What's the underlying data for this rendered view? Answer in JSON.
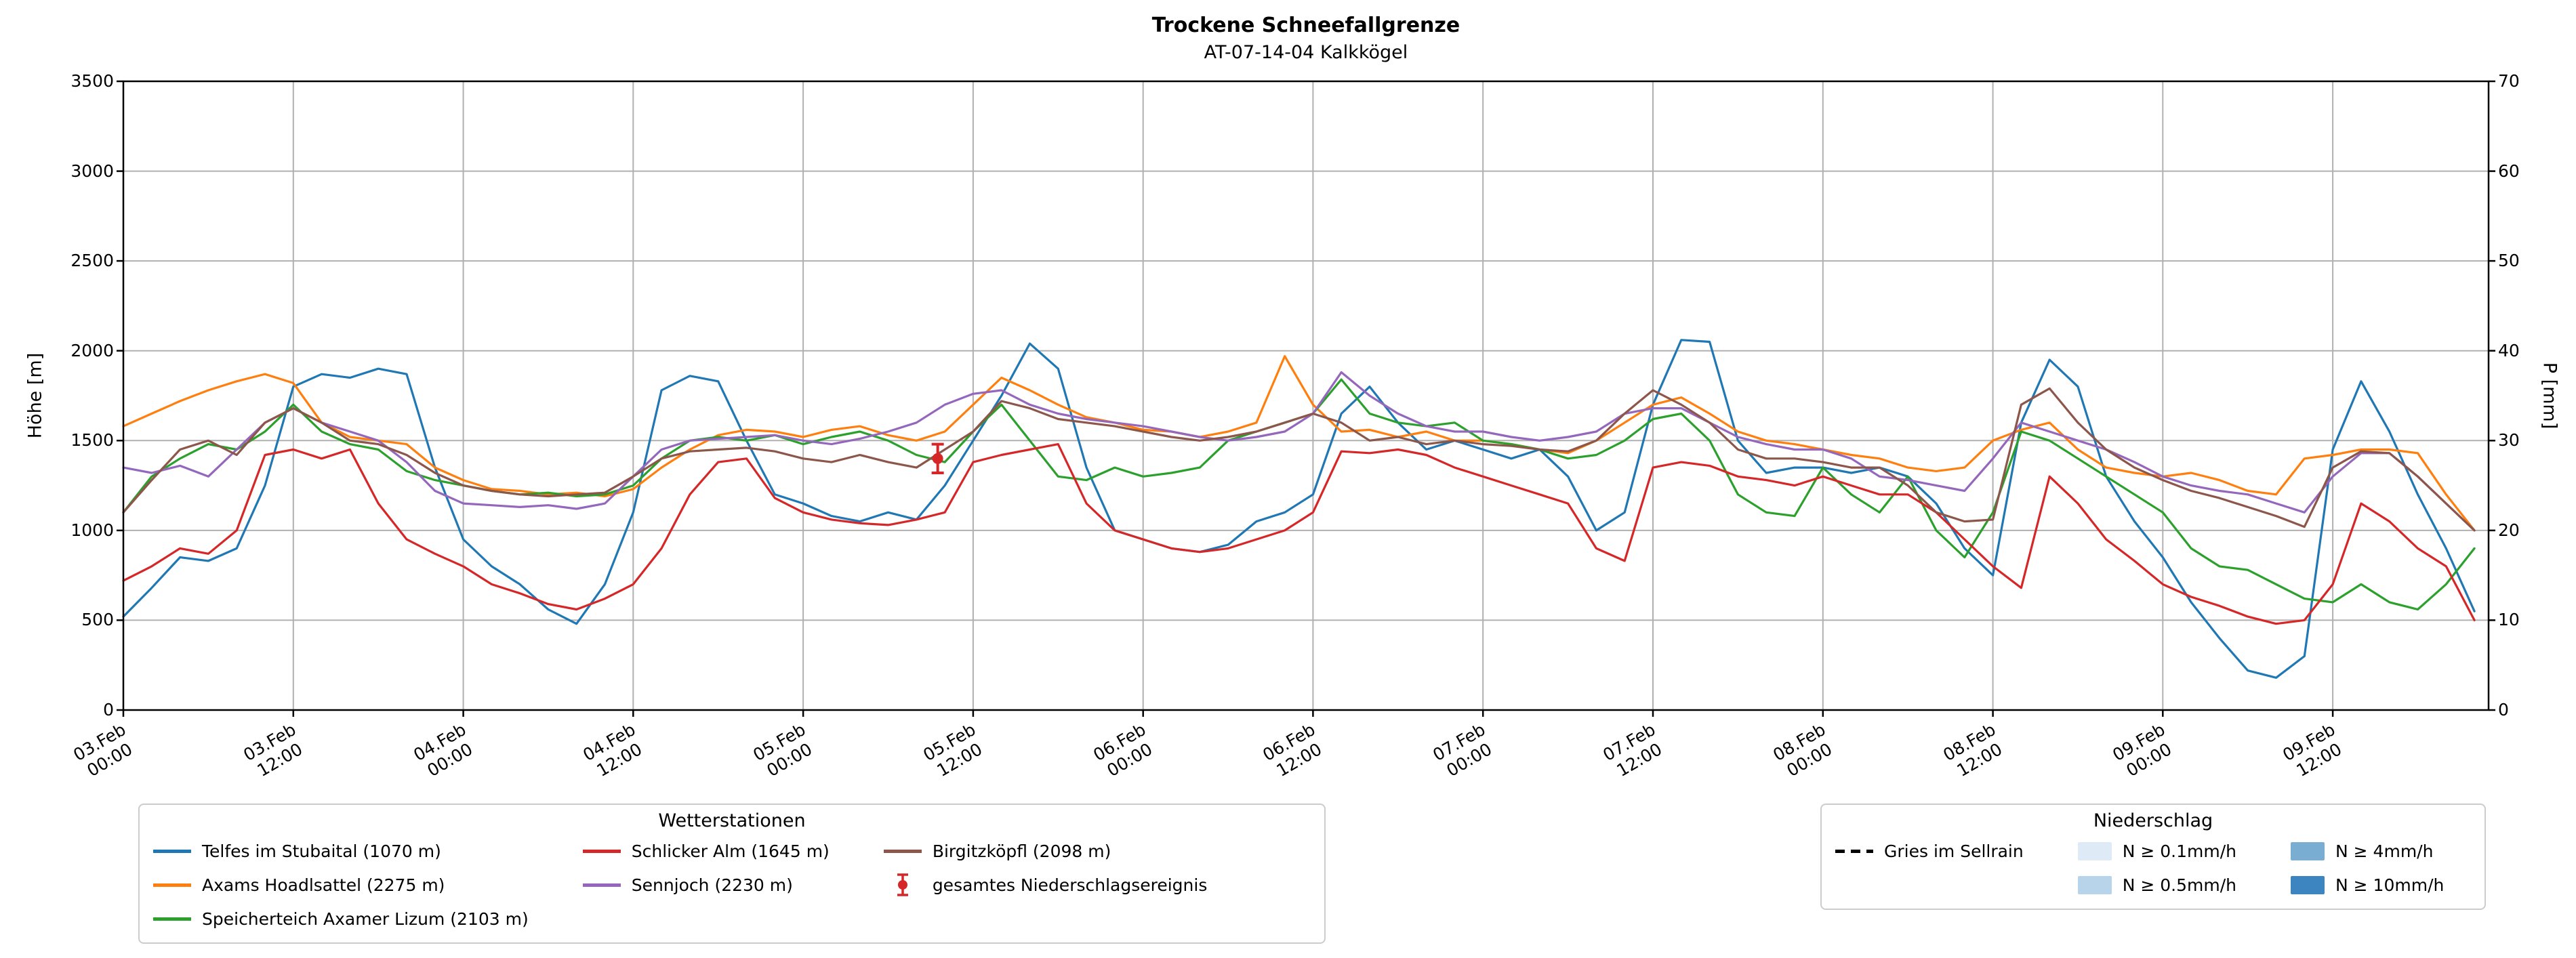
{
  "chart_data": {
    "type": "line",
    "title": "Trockene Schneefallgrenze",
    "subtitle": "AT-07-14-04 Kalkkögel",
    "ylabel_left": "Höhe [m]",
    "ylabel_right": "P [mm]",
    "ylim_left": [
      0,
      3500
    ],
    "ylim_right": [
      0,
      70
    ],
    "xlim_hours": [
      0,
      167
    ],
    "grid": true,
    "y_ticks_left": [
      0,
      500,
      1000,
      1500,
      2000,
      2500,
      3000,
      3500
    ],
    "y_ticks_right": [
      0,
      10,
      20,
      30,
      40,
      50,
      60,
      70
    ],
    "x_tick_hours": [
      0,
      12,
      24,
      36,
      48,
      60,
      72,
      84,
      96,
      108,
      120,
      132,
      144,
      156
    ],
    "x_tick_labels": [
      [
        "03.Feb",
        "00:00"
      ],
      [
        "03.Feb",
        "12:00"
      ],
      [
        "04.Feb",
        "00:00"
      ],
      [
        "04.Feb",
        "12:00"
      ],
      [
        "05.Feb",
        "00:00"
      ],
      [
        "05.Feb",
        "12:00"
      ],
      [
        "06.Feb",
        "00:00"
      ],
      [
        "06.Feb",
        "12:00"
      ],
      [
        "07.Feb",
        "00:00"
      ],
      [
        "07.Feb",
        "12:00"
      ],
      [
        "08.Feb",
        "00:00"
      ],
      [
        "08.Feb",
        "12:00"
      ],
      [
        "09.Feb",
        "00:00"
      ],
      [
        "09.Feb",
        "12:00"
      ]
    ],
    "x_hours": [
      0,
      2,
      4,
      6,
      8,
      10,
      12,
      14,
      16,
      18,
      20,
      22,
      24,
      26,
      28,
      30,
      32,
      34,
      36,
      38,
      40,
      42,
      44,
      46,
      48,
      50,
      52,
      54,
      56,
      58,
      60,
      62,
      64,
      66,
      68,
      70,
      72,
      74,
      76,
      78,
      80,
      82,
      84,
      86,
      88,
      90,
      92,
      94,
      96,
      98,
      100,
      102,
      104,
      106,
      108,
      110,
      112,
      114,
      116,
      118,
      120,
      122,
      124,
      126,
      128,
      130,
      132,
      134,
      136,
      138,
      140,
      142,
      144,
      146,
      148,
      150,
      152,
      154,
      156,
      158,
      160,
      162,
      164,
      166
    ],
    "series": [
      {
        "name": "Telfes im Stubaital (1070 m)",
        "color": "#1f77b4",
        "values": [
          520,
          680,
          850,
          830,
          900,
          1250,
          1800,
          1870,
          1850,
          1900,
          1870,
          1350,
          950,
          800,
          700,
          560,
          480,
          700,
          1100,
          1780,
          1860,
          1830,
          1500,
          1200,
          1150,
          1080,
          1050,
          1100,
          1060,
          1250,
          1500,
          1750,
          2040,
          1900,
          1350,
          1000,
          950,
          900,
          880,
          920,
          1050,
          1100,
          1200,
          1650,
          1800,
          1600,
          1450,
          1500,
          1450,
          1400,
          1450,
          1300,
          1000,
          1100,
          1700,
          2060,
          2050,
          1500,
          1320,
          1350,
          1350,
          1320,
          1350,
          1300,
          1150,
          900,
          750,
          1600,
          1950,
          1800,
          1300,
          1050,
          850,
          600,
          400,
          220,
          180,
          300,
          1450,
          1830,
          1550,
          1200,
          900,
          550
        ]
      },
      {
        "name": "Axams Hoadlsattel (2275 m)",
        "color": "#ff7f0e",
        "values": [
          1580,
          1650,
          1720,
          1780,
          1830,
          1870,
          1820,
          1600,
          1520,
          1500,
          1480,
          1350,
          1280,
          1230,
          1220,
          1200,
          1210,
          1190,
          1230,
          1350,
          1450,
          1530,
          1560,
          1550,
          1520,
          1560,
          1580,
          1530,
          1500,
          1550,
          1700,
          1850,
          1780,
          1700,
          1630,
          1600,
          1560,
          1550,
          1520,
          1550,
          1600,
          1970,
          1700,
          1550,
          1560,
          1520,
          1550,
          1500,
          1500,
          1480,
          1450,
          1430,
          1500,
          1600,
          1700,
          1740,
          1650,
          1550,
          1500,
          1480,
          1450,
          1420,
          1400,
          1350,
          1330,
          1350,
          1500,
          1560,
          1600,
          1450,
          1350,
          1320,
          1300,
          1320,
          1280,
          1220,
          1200,
          1400,
          1420,
          1450,
          1450,
          1430,
          1200,
          1000
        ]
      },
      {
        "name": "Speicherteich Axamer Lizum (2103 m)",
        "color": "#2ca02c",
        "values": [
          1100,
          1300,
          1400,
          1480,
          1450,
          1550,
          1700,
          1550,
          1480,
          1450,
          1330,
          1280,
          1250,
          1220,
          1200,
          1210,
          1190,
          1200,
          1250,
          1400,
          1500,
          1520,
          1500,
          1530,
          1480,
          1520,
          1550,
          1500,
          1420,
          1380,
          1550,
          1700,
          1500,
          1300,
          1280,
          1350,
          1300,
          1320,
          1350,
          1500,
          1550,
          1600,
          1650,
          1840,
          1650,
          1600,
          1580,
          1600,
          1500,
          1480,
          1450,
          1400,
          1420,
          1500,
          1620,
          1650,
          1500,
          1200,
          1100,
          1080,
          1350,
          1200,
          1100,
          1300,
          1000,
          850,
          1100,
          1550,
          1500,
          1400,
          1300,
          1200,
          1100,
          900,
          800,
          780,
          700,
          620,
          600,
          700,
          600,
          560,
          700,
          900
        ]
      },
      {
        "name": "Schlicker Alm (1645 m)",
        "color": "#d62728",
        "values": [
          720,
          800,
          900,
          870,
          1000,
          1420,
          1450,
          1400,
          1450,
          1150,
          950,
          870,
          800,
          700,
          650,
          590,
          560,
          620,
          700,
          900,
          1200,
          1380,
          1400,
          1180,
          1100,
          1060,
          1040,
          1030,
          1060,
          1100,
          1380,
          1420,
          1450,
          1480,
          1150,
          1000,
          950,
          900,
          880,
          900,
          950,
          1000,
          1100,
          1440,
          1430,
          1450,
          1420,
          1350,
          1300,
          1250,
          1200,
          1150,
          900,
          830,
          1350,
          1380,
          1360,
          1300,
          1280,
          1250,
          1300,
          1250,
          1200,
          1200,
          1100,
          950,
          800,
          680,
          1300,
          1150,
          950,
          830,
          700,
          630,
          580,
          520,
          480,
          500,
          700,
          1150,
          1050,
          900,
          800,
          500
        ]
      },
      {
        "name": "Sennjoch (2230 m)",
        "color": "#9467bd",
        "values": [
          1350,
          1320,
          1360,
          1300,
          1450,
          1600,
          1680,
          1600,
          1550,
          1500,
          1380,
          1220,
          1150,
          1140,
          1130,
          1140,
          1120,
          1150,
          1300,
          1450,
          1500,
          1510,
          1520,
          1530,
          1500,
          1480,
          1510,
          1550,
          1600,
          1700,
          1760,
          1780,
          1700,
          1650,
          1620,
          1600,
          1580,
          1550,
          1520,
          1500,
          1520,
          1550,
          1650,
          1880,
          1750,
          1650,
          1580,
          1550,
          1550,
          1520,
          1500,
          1520,
          1550,
          1650,
          1680,
          1680,
          1600,
          1520,
          1480,
          1450,
          1450,
          1400,
          1300,
          1280,
          1250,
          1220,
          1400,
          1600,
          1550,
          1500,
          1450,
          1380,
          1300,
          1250,
          1220,
          1200,
          1150,
          1100,
          1300,
          1430,
          1430,
          1300,
          1150,
          1000
        ]
      },
      {
        "name": "Birgitzköpfl (2098 m)",
        "color": "#8c564b",
        "values": [
          1100,
          1280,
          1450,
          1500,
          1420,
          1600,
          1680,
          1600,
          1500,
          1480,
          1420,
          1320,
          1250,
          1220,
          1200,
          1190,
          1200,
          1210,
          1300,
          1400,
          1440,
          1450,
          1460,
          1440,
          1400,
          1380,
          1420,
          1380,
          1350,
          1450,
          1550,
          1720,
          1680,
          1620,
          1600,
          1580,
          1550,
          1520,
          1500,
          1520,
          1550,
          1600,
          1650,
          1600,
          1500,
          1520,
          1480,
          1500,
          1480,
          1470,
          1450,
          1440,
          1500,
          1650,
          1780,
          1700,
          1600,
          1450,
          1400,
          1400,
          1380,
          1350,
          1350,
          1250,
          1100,
          1050,
          1060,
          1700,
          1790,
          1600,
          1450,
          1350,
          1280,
          1220,
          1180,
          1130,
          1080,
          1020,
          1350,
          1440,
          1430,
          1300,
          1150,
          1000
        ]
      }
    ],
    "event_marker": {
      "label": "gesamtes Niederschlagsereignis",
      "color": "#d62728",
      "t_hours": 57.5,
      "value": 1400,
      "error": 80
    }
  },
  "legends": {
    "stations": {
      "title": "Wetterstationen",
      "columns": [
        [
          {
            "label": "Telfes im Stubaital (1070 m)",
            "swatch": "line",
            "color": "#1f77b4"
          },
          {
            "label": "Axams Hoadlsattel (2275 m)",
            "swatch": "line",
            "color": "#ff7f0e"
          },
          {
            "label": "Speicherteich Axamer Lizum (2103 m)",
            "swatch": "line",
            "color": "#2ca02c"
          }
        ],
        [
          {
            "label": "Schlicker Alm (1645 m)",
            "swatch": "line",
            "color": "#d62728"
          },
          {
            "label": "Sennjoch (2230 m)",
            "swatch": "line",
            "color": "#9467bd"
          }
        ],
        [
          {
            "label": "Birgitzköpfl (2098 m)",
            "swatch": "line",
            "color": "#8c564b"
          },
          {
            "label": "gesamtes Niederschlagsereignis",
            "swatch": "errorbar",
            "color": "#d62728"
          }
        ]
      ]
    },
    "precip": {
      "title": "Niederschlag",
      "columns": [
        [
          {
            "label": "Gries im Sellrain",
            "swatch": "dashed",
            "color": "#000000"
          }
        ],
        [
          {
            "label": "N ≥ 0.1mm/h",
            "swatch": "patch",
            "color": "#deebf7"
          },
          {
            "label": "N ≥ 0.5mm/h",
            "swatch": "patch",
            "color": "#b7d4ea"
          }
        ],
        [
          {
            "label": "N ≥ 4mm/h",
            "swatch": "patch",
            "color": "#79aed2"
          },
          {
            "label": "N ≥ 10mm/h",
            "swatch": "patch",
            "color": "#3d85c0"
          }
        ]
      ]
    }
  }
}
